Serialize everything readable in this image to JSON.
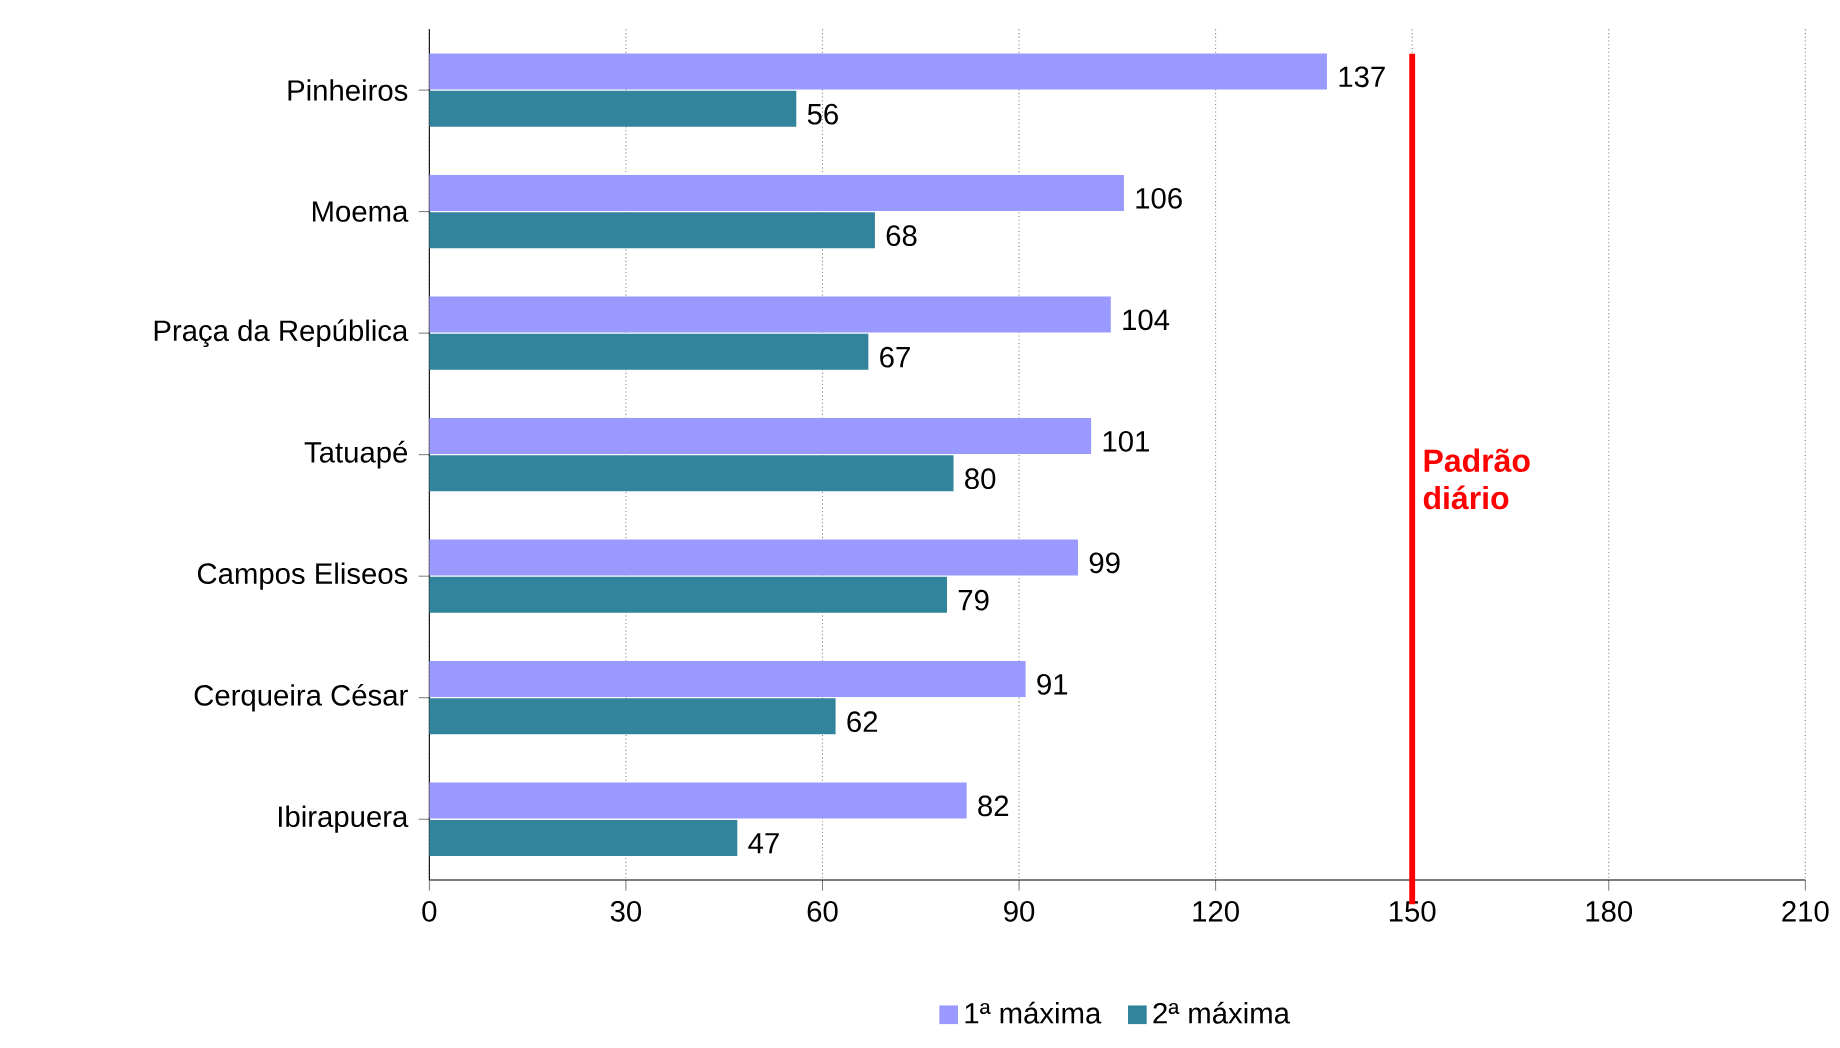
{
  "chart_data": {
    "type": "bar",
    "orientation": "horizontal",
    "categories": [
      "Pinheiros",
      "Moema",
      "Praça da República",
      "Tatuapé",
      "Campos Eliseos",
      "Cerqueira César",
      "Ibirapuera"
    ],
    "series": [
      {
        "name": "1ª máxima",
        "color": "#9999ff",
        "values": [
          137,
          106,
          104,
          101,
          99,
          91,
          82
        ]
      },
      {
        "name": "2ª máxima",
        "color": "#31849b",
        "values": [
          56,
          68,
          67,
          80,
          79,
          62,
          47
        ]
      }
    ],
    "xlim": [
      0,
      210
    ],
    "xticks": [
      0,
      30,
      60,
      90,
      120,
      150,
      180,
      210
    ],
    "grid": "x",
    "legend": "bottom",
    "data_labels": true,
    "ref_lines": [
      {
        "axis": "x",
        "value": 150,
        "label": "Padrão diário",
        "color": "#ff0000"
      }
    ]
  }
}
